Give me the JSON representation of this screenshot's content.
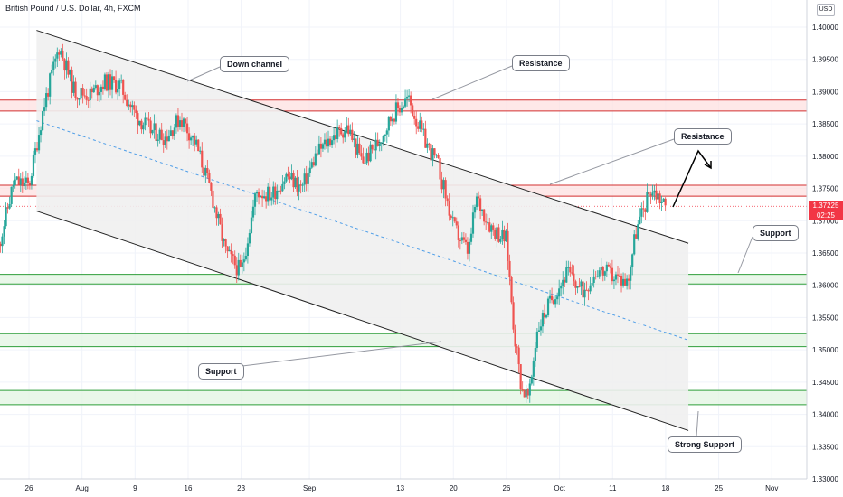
{
  "header": {
    "title": "British Pound / U.S. Dollar, 4h, FXCM",
    "currency": "USD"
  },
  "price_tag": {
    "value": "1.37225",
    "countdown": "02:25"
  },
  "colors": {
    "up": "#26a69a",
    "down": "#ef5350",
    "resistance_line": "#d32f2f",
    "resistance_fill": "#fde0e0",
    "support_line": "#2e9e3a",
    "support_fill": "#e3f5e3",
    "channel_line": "#222222",
    "channel_fill": "#f0f0f0",
    "midline": "#4f9ee8",
    "last_price": "#f23645"
  },
  "annotations": {
    "down_channel": "Down channel",
    "resistance_top": "Resistance",
    "resistance_mid": "Resistance",
    "support_right": "Support",
    "support_left": "Support",
    "strong_support": "Strong Support"
  },
  "chart_data": {
    "type": "candlestick",
    "title": "British Pound / U.S. Dollar, 4h, FXCM",
    "ylim": [
      1.33,
      1.4
    ],
    "y_ticks": [
      "1.40000",
      "1.39500",
      "1.39000",
      "1.38500",
      "1.38000",
      "1.37500",
      "1.37000",
      "1.36500",
      "1.36000",
      "1.35500",
      "1.35000",
      "1.34500",
      "1.34000",
      "1.33500",
      "1.33000"
    ],
    "x_ticks": [
      "26",
      "Aug",
      "9",
      "16",
      "23",
      "Sep",
      "13",
      "20",
      "26",
      "Oct",
      "11",
      "18",
      "25",
      "Nov"
    ],
    "grid": true,
    "last_price": 1.37225,
    "resistance_zones": [
      [
        1.387,
        1.3887
      ],
      [
        1.3738,
        1.3755
      ]
    ],
    "support_zones": [
      [
        1.3602,
        1.3617
      ],
      [
        1.3505,
        1.3525
      ],
      [
        1.3415,
        1.3437
      ]
    ],
    "channel": {
      "upper": [
        [
          "Jul 27",
          1.3995
        ],
        [
          "Oct 21",
          1.3665
        ]
      ],
      "lower": [
        [
          "Jul 27",
          1.3715
        ],
        [
          "Oct 21",
          1.3375
        ]
      ],
      "mid": [
        [
          "Jul 27",
          1.3855
        ],
        [
          "Oct 21",
          1.3515
        ]
      ]
    },
    "path": [
      [
        "Jul 22",
        1.366
      ],
      [
        "Jul 24",
        1.376
      ],
      [
        "Jul 26",
        1.3755
      ],
      [
        "Jul 28",
        1.388
      ],
      [
        "Jul 30",
        1.397
      ],
      [
        "Aug 1",
        1.39
      ],
      [
        "Aug 3",
        1.3895
      ],
      [
        "Aug 5",
        1.3915
      ],
      [
        "Aug 7",
        1.391
      ],
      [
        "Aug 9",
        1.3865
      ],
      [
        "Aug 11",
        1.384
      ],
      [
        "Aug 13",
        1.383
      ],
      [
        "Aug 15",
        1.386
      ],
      [
        "Aug 17",
        1.382
      ],
      [
        "Aug 19",
        1.3745
      ],
      [
        "Aug 21",
        1.365
      ],
      [
        "Aug 23",
        1.362
      ],
      [
        "Aug 25",
        1.3745
      ],
      [
        "Aug 27",
        1.374
      ],
      [
        "Aug 29",
        1.377
      ],
      [
        "Aug 31",
        1.375
      ],
      [
        "Sep 2",
        1.3805
      ],
      [
        "Sep 4",
        1.383
      ],
      [
        "Sep 6",
        1.3845
      ],
      [
        "Sep 8",
        1.379
      ],
      [
        "Sep 10",
        1.382
      ],
      [
        "Sep 12",
        1.3865
      ],
      [
        "Sep 14",
        1.389
      ],
      [
        "Sep 16",
        1.383
      ],
      [
        "Sep 18",
        1.3785
      ],
      [
        "Sep 20",
        1.369
      ],
      [
        "Sep 22",
        1.365
      ],
      [
        "Sep 23",
        1.3735
      ],
      [
        "Sep 25",
        1.369
      ],
      [
        "Sep 27",
        1.367
      ],
      [
        "Sep 28",
        1.353
      ],
      [
        "Sep 29",
        1.344
      ],
      [
        "Sep 30",
        1.3425
      ],
      [
        "Oct 1",
        1.353
      ],
      [
        "Oct 3",
        1.358
      ],
      [
        "Oct 5",
        1.362
      ],
      [
        "Oct 7",
        1.359
      ],
      [
        "Oct 9",
        1.3625
      ],
      [
        "Oct 11",
        1.3615
      ],
      [
        "Oct 13",
        1.3605
      ],
      [
        "Oct 14",
        1.368
      ],
      [
        "Oct 16",
        1.375
      ],
      [
        "Oct 17",
        1.374
      ],
      [
        "Oct 18",
        1.3722
      ]
    ]
  }
}
